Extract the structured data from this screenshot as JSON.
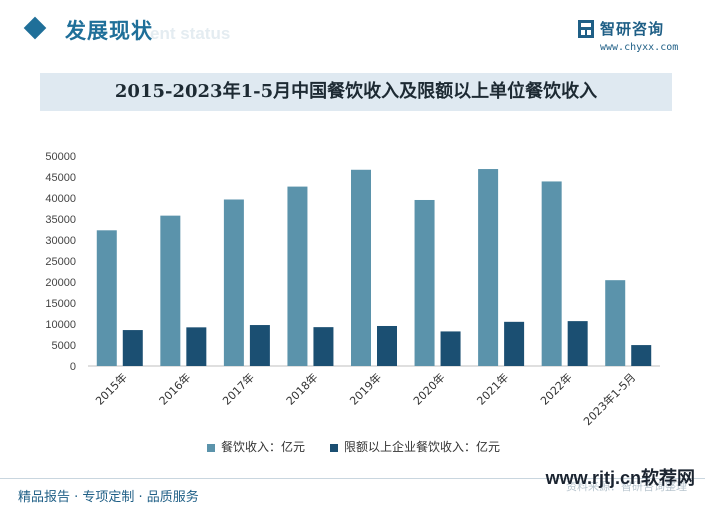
{
  "header": {
    "section_title": "发展现状",
    "ghost_text": "ent status",
    "logo_name": "智研咨询",
    "logo_url": "www.chyxx.com"
  },
  "chart_data": {
    "type": "bar",
    "title": "2015-2023年1-5月中国餐饮收入及限额以上单位餐饮收入",
    "categories": [
      "2015年",
      "2016年",
      "2017年",
      "2018年",
      "2019年",
      "2020年",
      "2021年",
      "2022年",
      "2023年1-5月"
    ],
    "series": [
      {
        "name": "餐饮收入：亿元",
        "color": "#5b93ab",
        "values": [
          32310,
          35799,
          39644,
          42716,
          46721,
          39527,
          46895,
          43941,
          20435
        ]
      },
      {
        "name": "限额以上企业餐饮收入：亿元",
        "color": "#1b4f72",
        "values": [
          8555,
          9204,
          9752,
          9251,
          9526,
          8231,
          10517,
          10686,
          4982
        ]
      }
    ],
    "ylim": [
      0,
      50000
    ],
    "yticks": [
      0,
      5000,
      10000,
      15000,
      20000,
      25000,
      30000,
      35000,
      40000,
      45000,
      50000
    ],
    "grid": false,
    "legend_position": "bottom"
  },
  "footer": {
    "tagline": "精品报告 · 专项定制 · 品质服务",
    "source": "资料来源：智研咨询整理",
    "watermark": "www.rjtj.cn软荐网"
  }
}
